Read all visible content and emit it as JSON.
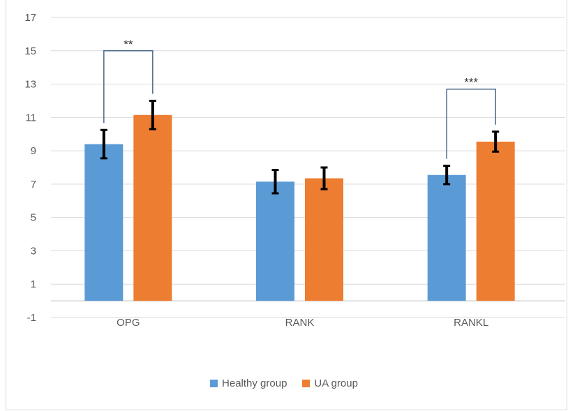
{
  "chart_data": {
    "type": "bar",
    "categories": [
      "OPG",
      "RANK",
      "RANKL"
    ],
    "series": [
      {
        "name": "Healthy group",
        "color": "#5b9bd5",
        "values": [
          9.4,
          7.15,
          7.55
        ],
        "errors": [
          0.85,
          0.7,
          0.55
        ]
      },
      {
        "name": "UA group",
        "color": "#ed7d31",
        "values": [
          11.15,
          7.35,
          9.55
        ],
        "errors": [
          0.85,
          0.65,
          0.6
        ]
      }
    ],
    "ylim": [
      -1,
      17
    ],
    "yticks": [
      -1,
      1,
      3,
      5,
      7,
      9,
      11,
      13,
      15,
      17
    ],
    "title": "",
    "xlabel": "",
    "ylabel": "",
    "grid": true,
    "legend_position": "bottom",
    "significance": [
      {
        "category": "OPG",
        "label": "**",
        "bracket_level": 15
      },
      {
        "category": "RANKL",
        "label": "***",
        "bracket_level": 12.7
      }
    ]
  }
}
